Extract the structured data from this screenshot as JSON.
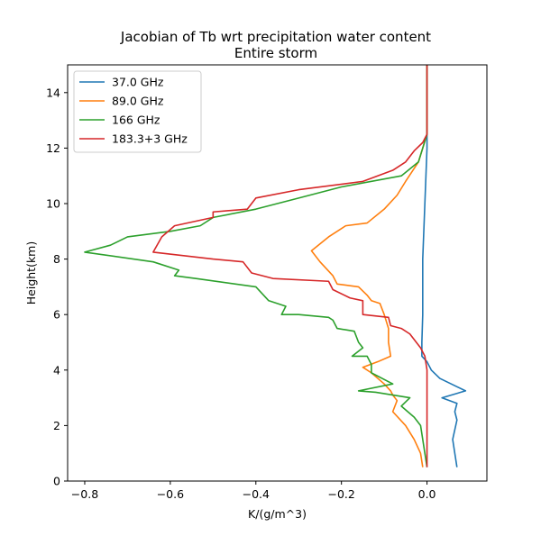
{
  "chart_data": {
    "type": "line",
    "title": "Jacobian of Tb wrt precipitation water content",
    "subtitle": "Entire storm",
    "xlabel": "K/(g/m^3)",
    "ylabel": "Height(km)",
    "xlim": [
      -0.84,
      0.14
    ],
    "ylim": [
      0,
      15
    ],
    "xticks": [
      -0.8,
      -0.6,
      -0.4,
      -0.2,
      0.0
    ],
    "xtick_labels": [
      "−0.8",
      "−0.6",
      "−0.4",
      "−0.2",
      "0.0"
    ],
    "yticks": [
      0,
      2,
      4,
      6,
      8,
      10,
      12,
      14
    ],
    "ytick_labels": [
      "0",
      "2",
      "4",
      "6",
      "8",
      "10",
      "12",
      "14"
    ],
    "grid": false,
    "legend_position": "top-left",
    "series": [
      {
        "name": "37.0 GHz",
        "color": "#1f77b4",
        "points": [
          [
            0.0,
            15.0
          ],
          [
            0.0,
            12.0
          ],
          [
            -0.005,
            10.0
          ],
          [
            -0.01,
            8.0
          ],
          [
            -0.01,
            7.0
          ],
          [
            -0.01,
            6.0
          ],
          [
            -0.012,
            5.0
          ],
          [
            -0.012,
            4.5
          ],
          [
            0.0,
            4.3
          ],
          [
            0.01,
            4.0
          ],
          [
            0.03,
            3.7
          ],
          [
            0.09,
            3.25
          ],
          [
            0.035,
            3.0
          ],
          [
            0.07,
            2.8
          ],
          [
            0.065,
            2.5
          ],
          [
            0.07,
            2.2
          ],
          [
            0.06,
            1.5
          ],
          [
            0.065,
            1.0
          ],
          [
            0.07,
            0.5
          ]
        ]
      },
      {
        "name": "89.0 GHz",
        "color": "#ff7f0e",
        "points": [
          [
            0.0,
            15.0
          ],
          [
            0.0,
            12.5
          ],
          [
            -0.02,
            11.5
          ],
          [
            -0.05,
            10.8
          ],
          [
            -0.07,
            10.3
          ],
          [
            -0.1,
            9.8
          ],
          [
            -0.14,
            9.3
          ],
          [
            -0.19,
            9.2
          ],
          [
            -0.23,
            8.8
          ],
          [
            -0.27,
            8.3
          ],
          [
            -0.25,
            7.9
          ],
          [
            -0.22,
            7.4
          ],
          [
            -0.21,
            7.1
          ],
          [
            -0.16,
            7.0
          ],
          [
            -0.14,
            6.7
          ],
          [
            -0.13,
            6.5
          ],
          [
            -0.11,
            6.4
          ],
          [
            -0.1,
            6.0
          ],
          [
            -0.09,
            5.5
          ],
          [
            -0.09,
            5.0
          ],
          [
            -0.085,
            4.5
          ],
          [
            -0.115,
            4.3
          ],
          [
            -0.15,
            4.1
          ],
          [
            -0.13,
            3.9
          ],
          [
            -0.1,
            3.5
          ],
          [
            -0.085,
            3.25
          ],
          [
            -0.08,
            3.1
          ],
          [
            -0.07,
            2.9
          ],
          [
            -0.08,
            2.5
          ],
          [
            -0.05,
            2.0
          ],
          [
            -0.03,
            1.5
          ],
          [
            -0.015,
            1.0
          ],
          [
            -0.01,
            0.5
          ]
        ]
      },
      {
        "name": "166 GHz",
        "color": "#2ca02c",
        "points": [
          [
            0.0,
            15.0
          ],
          [
            0.0,
            12.5
          ],
          [
            -0.02,
            11.5
          ],
          [
            -0.06,
            11.0
          ],
          [
            -0.2,
            10.6
          ],
          [
            -0.3,
            10.2
          ],
          [
            -0.4,
            9.8
          ],
          [
            -0.5,
            9.5
          ],
          [
            -0.53,
            9.2
          ],
          [
            -0.6,
            9.0
          ],
          [
            -0.7,
            8.8
          ],
          [
            -0.74,
            8.5
          ],
          [
            -0.8,
            8.25
          ],
          [
            -0.64,
            7.9
          ],
          [
            -0.58,
            7.6
          ],
          [
            -0.59,
            7.4
          ],
          [
            -0.54,
            7.3
          ],
          [
            -0.4,
            7.0
          ],
          [
            -0.37,
            6.5
          ],
          [
            -0.33,
            6.3
          ],
          [
            -0.34,
            6.0
          ],
          [
            -0.3,
            6.0
          ],
          [
            -0.23,
            5.9
          ],
          [
            -0.22,
            5.8
          ],
          [
            -0.21,
            5.5
          ],
          [
            -0.17,
            5.4
          ],
          [
            -0.16,
            5.0
          ],
          [
            -0.15,
            4.8
          ],
          [
            -0.175,
            4.5
          ],
          [
            -0.14,
            4.5
          ],
          [
            -0.13,
            4.2
          ],
          [
            -0.13,
            3.9
          ],
          [
            -0.08,
            3.5
          ],
          [
            -0.16,
            3.25
          ],
          [
            -0.12,
            3.2
          ],
          [
            -0.04,
            3.0
          ],
          [
            -0.06,
            2.7
          ],
          [
            -0.045,
            2.5
          ],
          [
            -0.03,
            2.3
          ],
          [
            -0.015,
            2.0
          ],
          [
            -0.01,
            1.5
          ],
          [
            -0.005,
            1.0
          ],
          [
            0.0,
            0.5
          ]
        ]
      },
      {
        "name": "183.3+3 GHz",
        "color": "#d62728",
        "points": [
          [
            0.0,
            15.0
          ],
          [
            0.0,
            12.5
          ],
          [
            -0.01,
            12.2
          ],
          [
            -0.03,
            11.9
          ],
          [
            -0.05,
            11.5
          ],
          [
            -0.08,
            11.2
          ],
          [
            -0.15,
            10.8
          ],
          [
            -0.3,
            10.5
          ],
          [
            -0.4,
            10.2
          ],
          [
            -0.42,
            9.8
          ],
          [
            -0.5,
            9.7
          ],
          [
            -0.5,
            9.5
          ],
          [
            -0.59,
            9.2
          ],
          [
            -0.62,
            8.8
          ],
          [
            -0.64,
            8.25
          ],
          [
            -0.5,
            8.0
          ],
          [
            -0.43,
            7.9
          ],
          [
            -0.41,
            7.5
          ],
          [
            -0.36,
            7.3
          ],
          [
            -0.23,
            7.2
          ],
          [
            -0.22,
            6.9
          ],
          [
            -0.18,
            6.6
          ],
          [
            -0.15,
            6.5
          ],
          [
            -0.15,
            6.0
          ],
          [
            -0.09,
            5.9
          ],
          [
            -0.085,
            5.6
          ],
          [
            -0.06,
            5.5
          ],
          [
            -0.04,
            5.3
          ],
          [
            -0.025,
            5.0
          ],
          [
            -0.015,
            4.8
          ],
          [
            -0.005,
            4.5
          ],
          [
            0.0,
            4.0
          ],
          [
            0.0,
            3.0
          ],
          [
            0.0,
            2.0
          ],
          [
            0.0,
            1.0
          ],
          [
            0.0,
            0.5
          ]
        ]
      }
    ]
  }
}
